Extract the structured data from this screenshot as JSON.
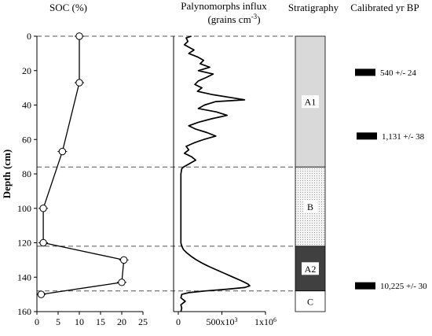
{
  "chart_data": {
    "type": "line",
    "y_axis": {
      "label": "Depth (cm)",
      "ylim": [
        0,
        160
      ],
      "ticks": [
        "0",
        "20",
        "40",
        "60",
        "80",
        "100",
        "120",
        "140",
        "160"
      ],
      "inverted": true
    },
    "panels": [
      {
        "title": "SOC (%)",
        "xlim": [
          0,
          25
        ],
        "xticks": [
          "0",
          "5",
          "10",
          "15",
          "20",
          "25"
        ],
        "series": {
          "marker": "open-circle",
          "points": [
            {
              "x": 10,
              "depth": 0
            },
            {
              "x": 10,
              "depth": 27
            },
            {
              "x": 6,
              "depth": 67
            },
            {
              "x": 1.5,
              "depth": 100
            },
            {
              "x": 1.5,
              "depth": 120
            },
            {
              "x": 20.5,
              "depth": 130
            },
            {
              "x": 20,
              "depth": 143
            },
            {
              "x": 1,
              "depth": 150
            }
          ]
        }
      },
      {
        "title": "Palynomorphs influx",
        "subtitle": "(grains cm",
        "subtitle_sup": "-3",
        "subtitle_end": ")",
        "xlim": [
          0,
          1000000
        ],
        "xticks": [
          {
            "value": 0,
            "label": "0"
          },
          {
            "value": 500000,
            "label": "500x10",
            "sup": "3"
          },
          {
            "value": 1000000,
            "label": "1x10",
            "sup": "6"
          }
        ],
        "series": {
          "depth": [
            0,
            1,
            3,
            5,
            8,
            10,
            12,
            14,
            16,
            18,
            20,
            22,
            24,
            26,
            28,
            30,
            32,
            34,
            36,
            37,
            38,
            40,
            42,
            44,
            46,
            48,
            50,
            52,
            54,
            56,
            58,
            60,
            62,
            64,
            66,
            68,
            70,
            72,
            74,
            76,
            77,
            80,
            100,
            120,
            122,
            124,
            126,
            128,
            130,
            132,
            134,
            136,
            138,
            140,
            142,
            144,
            145,
            146,
            147,
            148,
            149,
            150,
            152,
            154,
            156,
            158,
            160
          ],
          "influx": [
            150000,
            90000,
            110000,
            70000,
            180000,
            120000,
            220000,
            290000,
            250000,
            360000,
            230000,
            400000,
            320000,
            230000,
            190000,
            270000,
            220000,
            400000,
            650000,
            760000,
            430000,
            300000,
            230000,
            440000,
            560000,
            380000,
            230000,
            120000,
            200000,
            330000,
            430000,
            290000,
            180000,
            90000,
            120000,
            70000,
            150000,
            200000,
            130000,
            60000,
            40000,
            30000,
            30000,
            30000,
            40000,
            60000,
            100000,
            150000,
            210000,
            280000,
            360000,
            450000,
            540000,
            630000,
            720000,
            800000,
            820000,
            760000,
            550000,
            300000,
            120000,
            40000,
            30000,
            80000,
            30000,
            40000,
            30000
          ]
        }
      }
    ],
    "stratigraphy": {
      "title": "Stratigraphy",
      "units": [
        {
          "label": "A1",
          "top": 0,
          "bottom": 76,
          "fill": "#d9d9d9",
          "pattern": "none"
        },
        {
          "label": "B",
          "top": 76,
          "bottom": 122,
          "fill": "#f2f2f2",
          "pattern": "dots"
        },
        {
          "label": "A2",
          "top": 122,
          "bottom": 148,
          "fill": "#404040",
          "pattern": "none",
          "label_box": true
        },
        {
          "label": "C",
          "top": 148,
          "bottom": 160,
          "fill": "#ffffff",
          "pattern": "none"
        }
      ]
    },
    "boundaries_depth": [
      0,
      76,
      122,
      148
    ],
    "dates": {
      "title": "Calibrated yr BP",
      "items": [
        {
          "depth": 21,
          "label": "540 +/- 24"
        },
        {
          "depth": 58,
          "label": "1,131 +/- 38"
        },
        {
          "depth": 145,
          "label": "10,225 +/- 30"
        }
      ]
    }
  }
}
